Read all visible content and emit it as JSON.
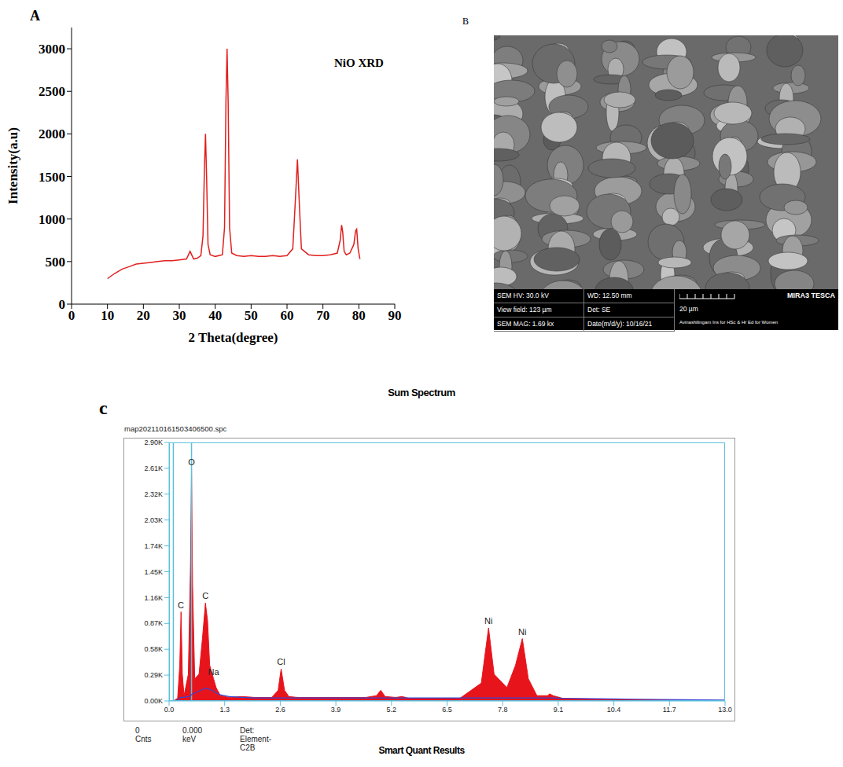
{
  "chart_data": [
    {
      "panel_label": "A",
      "type": "line",
      "title": "NiO XRD",
      "x_label": "2 Theta(degree)",
      "y_label": "Intensity(a.u)",
      "color": "#e0201e",
      "x": [
        10,
        12,
        14,
        16,
        18,
        20,
        22,
        24,
        26,
        28,
        30,
        32,
        33,
        34,
        35,
        36,
        36.6,
        37.0,
        37.3,
        37.6,
        38.0,
        38.6,
        40,
        42,
        42.6,
        43.0,
        43.3,
        43.6,
        44.0,
        44.6,
        46,
        48,
        50,
        52,
        54,
        56,
        58,
        60,
        61.6,
        62.3,
        62.9,
        63.4,
        64.0,
        66,
        68,
        70,
        72,
        74,
        74.8,
        75.2,
        75.5,
        75.9,
        76.5,
        77.5,
        78.6,
        79.1,
        79.4,
        79.8,
        80.3
      ],
      "values": [
        300,
        360,
        410,
        440,
        470,
        480,
        490,
        500,
        510,
        510,
        520,
        530,
        620,
        530,
        540,
        570,
        800,
        1600,
        2000,
        1500,
        700,
        580,
        560,
        580,
        900,
        2400,
        3000,
        2400,
        900,
        600,
        570,
        560,
        570,
        560,
        560,
        570,
        560,
        570,
        650,
        1200,
        1700,
        1200,
        650,
        580,
        570,
        570,
        580,
        600,
        750,
        930,
        850,
        620,
        580,
        600,
        700,
        860,
        880,
        650,
        530
      ],
      "xlim": [
        0,
        90
      ],
      "xticks": [
        0,
        10,
        20,
        30,
        40,
        50,
        60,
        70,
        80,
        90
      ],
      "ylim": [
        0,
        3250
      ],
      "yticks": [
        0,
        500,
        1000,
        1500,
        2000,
        2500,
        3000
      ]
    },
    {
      "panel_label": "c",
      "type": "area",
      "title": "Sum Spectrum",
      "subtitle": "map202110161503406500.spc",
      "footer": "Smart Quant Results",
      "status": [
        "0 Cnts",
        "0.000 keV",
        "Det: Element-C2B"
      ],
      "x": [
        0.0,
        0.1,
        0.2,
        0.25,
        0.28,
        0.31,
        0.35,
        0.45,
        0.5,
        0.525,
        0.55,
        0.6,
        0.7,
        0.78,
        0.85,
        0.9,
        0.95,
        1.04,
        1.1,
        1.2,
        1.4,
        1.7,
        2.0,
        2.4,
        2.55,
        2.62,
        2.7,
        2.8,
        3.0,
        3.5,
        4.0,
        4.6,
        4.85,
        4.95,
        5.05,
        5.3,
        5.45,
        5.6,
        6.0,
        6.8,
        7.3,
        7.47,
        7.6,
        7.9,
        8.1,
        8.26,
        8.4,
        8.6,
        8.85,
        8.9,
        8.98,
        9.2,
        10.0,
        11.0,
        12.0,
        13.0
      ],
      "series": [
        {
          "type": "area",
          "color": "#e8141c",
          "values": [
            0,
            0,
            30,
            400,
            1000,
            300,
            60,
            300,
            1500,
            2600,
            1300,
            250,
            300,
            700,
            1100,
            900,
            400,
            250,
            150,
            60,
            40,
            50,
            40,
            40,
            120,
            360,
            120,
            50,
            40,
            40,
            40,
            40,
            60,
            120,
            50,
            40,
            50,
            30,
            30,
            30,
            200,
            820,
            300,
            150,
            400,
            700,
            250,
            60,
            60,
            80,
            60,
            30,
            20,
            15,
            10,
            5
          ]
        },
        {
          "type": "line",
          "color": "#3346d8",
          "values": [
            0,
            0,
            10,
            30,
            40,
            40,
            40,
            50,
            60,
            70,
            80,
            90,
            110,
            130,
            140,
            140,
            130,
            110,
            90,
            70,
            50,
            40,
            35,
            35,
            35,
            35,
            35,
            35,
            35,
            35,
            35,
            35,
            35,
            35,
            35,
            35,
            35,
            35,
            35,
            35,
            35,
            35,
            35,
            35,
            35,
            35,
            35,
            35,
            35,
            35,
            35,
            30,
            25,
            20,
            15,
            10
          ]
        }
      ],
      "xlim": [
        0,
        13
      ],
      "xticks": [
        {
          "value": 0,
          "label": "0.0"
        },
        1.3,
        2.6,
        3.9,
        5.2,
        6.5,
        7.8,
        9.1,
        10.4,
        11.7,
        {
          "value": 13,
          "label": "13.0"
        }
      ],
      "ylim": [
        0,
        2900
      ],
      "yticks": [
        {
          "value": 0,
          "label": "0.00K"
        },
        {
          "value": 290,
          "label": "0.29K"
        },
        {
          "value": 580,
          "label": "0.58K"
        },
        {
          "value": 870,
          "label": "0.87K"
        },
        {
          "value": 1160,
          "label": "1.16K"
        },
        {
          "value": 1450,
          "label": "1.45K"
        },
        {
          "value": 1740,
          "label": "1.74K"
        },
        {
          "value": 2030,
          "label": "2.03K"
        },
        {
          "value": 2320,
          "label": "2.32K"
        },
        {
          "value": 2610,
          "label": "2.61K"
        },
        {
          "value": 2900,
          "label": "2.90K"
        }
      ],
      "annotations": [
        {
          "label": "C",
          "x": 0.277,
          "y": 1000
        },
        {
          "label": "O",
          "x": 0.525,
          "y": 2600
        },
        {
          "label": "C",
          "x": 0.85,
          "y": 1100
        },
        {
          "label": "Na",
          "x": 1.04,
          "y": 250
        },
        {
          "label": "Cl",
          "x": 2.62,
          "y": 360
        },
        {
          "label": "Ni",
          "x": 7.47,
          "y": 820
        },
        {
          "label": "Ni",
          "x": 8.26,
          "y": 700
        }
      ],
      "cursor_lines": [
        0.1,
        0.525
      ]
    }
  ],
  "image": {
    "panel_label": "B",
    "columns": [
      [
        "SEM HV: 30.0 kV",
        "View field: 123 µm",
        "SEM MAG: 1.69 kx"
      ],
      [
        "WD: 12.50 mm",
        "Det: SE",
        "Date(m/d/y): 10/16/21"
      ]
    ],
    "scale_bar": "20 µm",
    "institution": "Avinashilingam Ins for HSc & Hr Ed for Women",
    "brand": "MIRA3 TESCA"
  }
}
